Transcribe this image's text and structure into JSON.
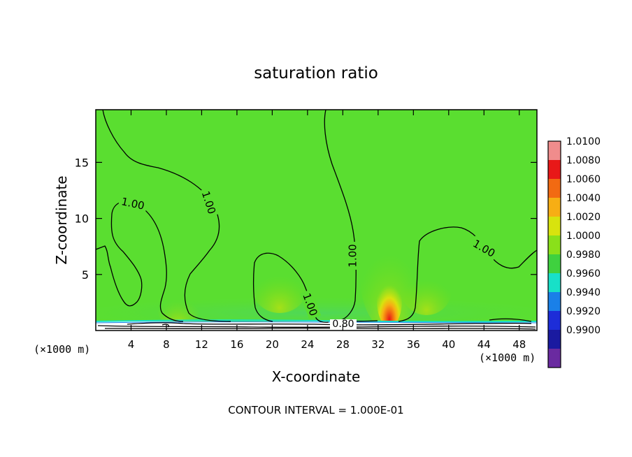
{
  "chart_data": {
    "type": "heatmap",
    "title": "saturation ratio",
    "xlabel": "X-coordinate",
    "ylabel": "Z-coordinate",
    "x_unit_label": "(×1000 m)",
    "z_unit_label": "(×1000 m)",
    "footer": "CONTOUR INTERVAL = 1.000E-01",
    "xlim": [
      0,
      50
    ],
    "ylim": [
      0,
      19.7
    ],
    "x_ticks": [
      4,
      8,
      12,
      16,
      20,
      24,
      28,
      32,
      36,
      40,
      44,
      48
    ],
    "y_ticks": [
      5,
      10,
      15
    ],
    "contour_labels": [
      {
        "text": "1.00",
        "x": 4.2,
        "z": 11.0,
        "rot": 12
      },
      {
        "text": "1.00",
        "x": 12.8,
        "z": 11.5,
        "rot": 72
      },
      {
        "text": "1.00",
        "x": 29.4,
        "z": 6.7,
        "rot": -90
      },
      {
        "text": "1.00",
        "x": 24.2,
        "z": 2.3,
        "rot": 70
      },
      {
        "text": "1.00",
        "x": 43.2,
        "z": 7.2,
        "rot": 30
      },
      {
        "text": "0.80",
        "x": 28.2,
        "z": 0.5,
        "rot": 0
      }
    ],
    "colorbar": {
      "levels": [
        "1.0100",
        "1.0080",
        "1.0060",
        "1.0040",
        "1.0020",
        "1.0000",
        "0.9980",
        "0.9960",
        "0.9940",
        "0.9920",
        "0.9900"
      ],
      "colors": [
        "#f08c8c",
        "#e81818",
        "#f26a12",
        "#f7ae14",
        "#d8e30e",
        "#8ae01a",
        "#3fd13f",
        "#18e0c8",
        "#1a80e8",
        "#1d2dd8",
        "#1a1aa0",
        "#6a2aa0"
      ]
    },
    "background_level": "1.0000",
    "hotspot": {
      "x": 33.2,
      "z_top": 3.6,
      "max_level": "1.0080"
    }
  }
}
